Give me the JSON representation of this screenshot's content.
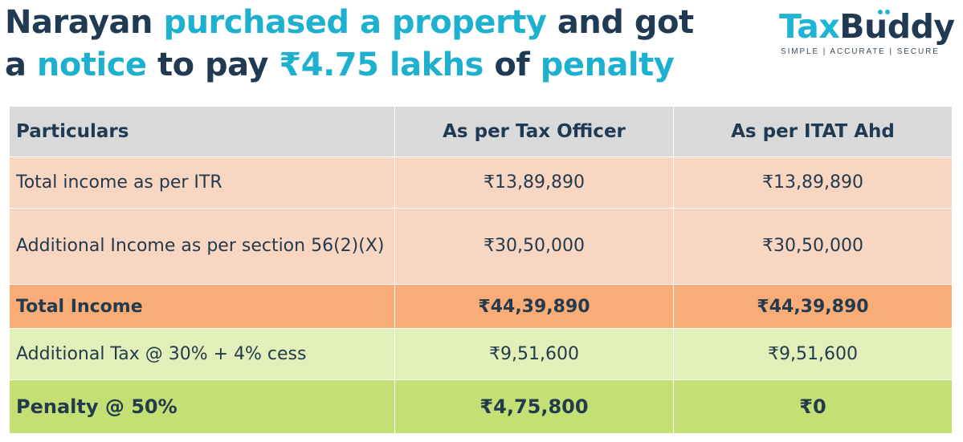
{
  "headline": {
    "line1": {
      "part1": "Narayan ",
      "part2": "purchased a property",
      "part3": " and got"
    },
    "line2": {
      "part1": "a ",
      "part2": "notice",
      "part3": " to pay ",
      "part4": "₹4.75 lakhs",
      "part5": " of ",
      "part6": "penalty"
    }
  },
  "logo": {
    "brand_a": "Tax",
    "brand_b": "Buddy",
    "tagline": "SIMPLE | ACCURATE | SECURE"
  },
  "table": {
    "headers": [
      "Particulars",
      "As per Tax Officer",
      "As per ITAT Ahd"
    ],
    "rows": [
      {
        "label": "Total income as per ITR",
        "officer": "₹13,89,890",
        "itat": "₹13,89,890"
      },
      {
        "label": "Additional Income as per section 56(2)(X)",
        "officer": "₹30,50,000",
        "itat": "₹30,50,000"
      },
      {
        "label": "Total Income",
        "officer": "₹44,39,890",
        "itat": "₹44,39,890"
      },
      {
        "label": "Additional Tax @ 30% + 4% cess",
        "officer": "₹9,51,600",
        "itat": "₹9,51,600"
      },
      {
        "label": "Penalty @ 50%",
        "officer": "₹4,75,800",
        "itat": "₹0"
      }
    ]
  },
  "colors": {
    "navy": "#1f3a52",
    "accent": "#1eb0cf",
    "header_bg": "#d9d9d9",
    "peach": "#f8d6c2",
    "orange": "#f9ac77",
    "light_green": "#e2efb9",
    "green": "#c4df73"
  }
}
